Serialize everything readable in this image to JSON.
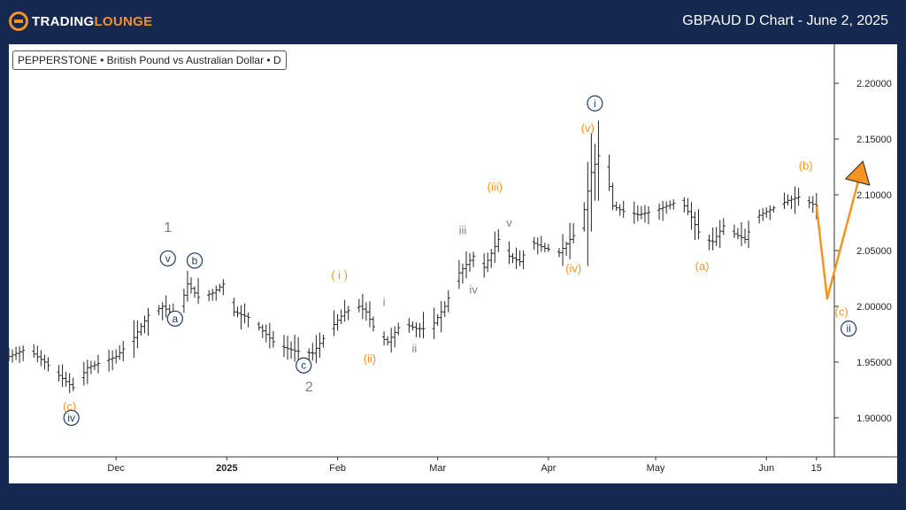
{
  "header": {
    "logo_text_main": "TRADING",
    "logo_text_accent": "LOUNGE",
    "title": "GBPAUD D Chart - June 2, 2025"
  },
  "chart": {
    "source_label": "PEPPERSTONE • British Pound vs Australian Dollar • D"
  },
  "colors": {
    "background": "#142850",
    "bars": "#222222",
    "orange": "#f7931e",
    "navy": "#1e3a64",
    "gray": "#808080"
  },
  "chart_data": {
    "type": "ohlc",
    "x_ticks": [
      "Dec",
      "2025",
      "Feb",
      "Mar",
      "Apr",
      "May",
      "Jun",
      "15"
    ],
    "x_tick_days": [
      30,
      61,
      92,
      120,
      151,
      181,
      212,
      226
    ],
    "y_ticks": [
      "2.20000",
      "2.15000",
      "2.10000",
      "2.05000",
      "2.00000",
      "1.95000",
      "1.90000"
    ],
    "y_tick_values": [
      2.2,
      2.15,
      2.1,
      2.05,
      2.0,
      1.95,
      1.9
    ],
    "ylim": [
      1.865,
      2.235
    ],
    "xlim": [
      0,
      231
    ],
    "series_anchors": [
      [
        0,
        1.955
      ],
      [
        5,
        1.962
      ],
      [
        10,
        1.95
      ],
      [
        14,
        1.938
      ],
      [
        18,
        1.927
      ],
      [
        22,
        1.945
      ],
      [
        26,
        1.95
      ],
      [
        30,
        1.955
      ],
      [
        35,
        1.972
      ],
      [
        39,
        1.992
      ],
      [
        43,
        2.0
      ],
      [
        47,
        1.99
      ],
      [
        50,
        2.02
      ],
      [
        53,
        2.008
      ],
      [
        57,
        2.012
      ],
      [
        60,
        2.02
      ],
      [
        63,
        1.995
      ],
      [
        67,
        1.99
      ],
      [
        71,
        1.978
      ],
      [
        75,
        1.965
      ],
      [
        80,
        1.96
      ],
      [
        85,
        1.958
      ],
      [
        90,
        1.98
      ],
      [
        94,
        1.995
      ],
      [
        98,
        2.0
      ],
      [
        100,
        1.995
      ],
      [
        103,
        1.975
      ],
      [
        106,
        1.968
      ],
      [
        110,
        1.985
      ],
      [
        114,
        1.98
      ],
      [
        118,
        1.98
      ],
      [
        122,
        2.0
      ],
      [
        126,
        2.03
      ],
      [
        130,
        2.045
      ],
      [
        133,
        2.035
      ],
      [
        137,
        2.06
      ],
      [
        140,
        2.045
      ],
      [
        143,
        2.04
      ],
      [
        146,
        2.058
      ],
      [
        150,
        2.052
      ],
      [
        154,
        2.048
      ],
      [
        157,
        2.06
      ],
      [
        160,
        2.07
      ],
      [
        163,
        2.12
      ],
      [
        165,
        2.135
      ],
      [
        167,
        2.125
      ],
      [
        169,
        2.09
      ],
      [
        172,
        2.085
      ],
      [
        176,
        2.082
      ],
      [
        180,
        2.085
      ],
      [
        184,
        2.09
      ],
      [
        188,
        2.095
      ],
      [
        191,
        2.08
      ],
      [
        194,
        2.06
      ],
      [
        197,
        2.058
      ],
      [
        200,
        2.072
      ],
      [
        203,
        2.065
      ],
      [
        206,
        2.06
      ],
      [
        209,
        2.08
      ],
      [
        212,
        2.085
      ],
      [
        215,
        2.09
      ],
      [
        218,
        2.095
      ],
      [
        221,
        2.098
      ],
      [
        224,
        2.093
      ],
      [
        226,
        2.09
      ]
    ],
    "projection": [
      [
        226,
        2.09
      ],
      [
        229,
        2.007
      ],
      [
        239,
        2.13
      ]
    ],
    "wave_labels": [
      {
        "text": "i",
        "style": "circle-navy",
        "x": 164,
        "y": 2.182
      },
      {
        "text": "(v)",
        "style": "orange",
        "x": 162,
        "y": 2.16
      },
      {
        "text": "(iii)",
        "style": "orange",
        "x": 136,
        "y": 2.107
      },
      {
        "text": "v",
        "style": "gray",
        "x": 140,
        "y": 2.075
      },
      {
        "text": "iii",
        "style": "gray",
        "x": 127,
        "y": 2.068
      },
      {
        "text": "iv",
        "style": "gray",
        "x": 130,
        "y": 2.015
      },
      {
        "text": "(iv)",
        "style": "orange",
        "x": 158,
        "y": 2.034
      },
      {
        "text": "(b)",
        "style": "orange",
        "x": 223,
        "y": 2.126
      },
      {
        "text": "(a)",
        "style": "orange",
        "x": 194,
        "y": 2.036
      },
      {
        "text": "(c)",
        "style": "orange",
        "x": 233,
        "y": 1.995
      },
      {
        "text": "ii",
        "style": "circle-navy",
        "x": 235,
        "y": 1.98
      },
      {
        "text": "1",
        "style": "gray-large",
        "x": 44.5,
        "y": 2.071
      },
      {
        "text": "v",
        "style": "circle-navy",
        "x": 44.5,
        "y": 2.043
      },
      {
        "text": "b",
        "style": "circle-navy",
        "x": 52,
        "y": 2.041
      },
      {
        "text": "a",
        "style": "circle-navy",
        "x": 46.5,
        "y": 1.989
      },
      {
        "text": "( i )",
        "style": "orange",
        "x": 92.5,
        "y": 2.028
      },
      {
        "text": "i",
        "style": "gray",
        "x": 105,
        "y": 2.004
      },
      {
        "text": "ii",
        "style": "gray",
        "x": 113.5,
        "y": 1.962
      },
      {
        "text": "(ii)",
        "style": "orange",
        "x": 101,
        "y": 1.953
      },
      {
        "text": "c",
        "style": "circle-navy",
        "x": 82.5,
        "y": 1.947
      },
      {
        "text": "2",
        "style": "gray-large",
        "x": 84,
        "y": 1.928
      },
      {
        "text": "(c)",
        "style": "orange",
        "x": 17,
        "y": 1.91
      },
      {
        "text": "iv",
        "style": "circle-navy",
        "x": 17.5,
        "y": 1.9
      }
    ]
  }
}
